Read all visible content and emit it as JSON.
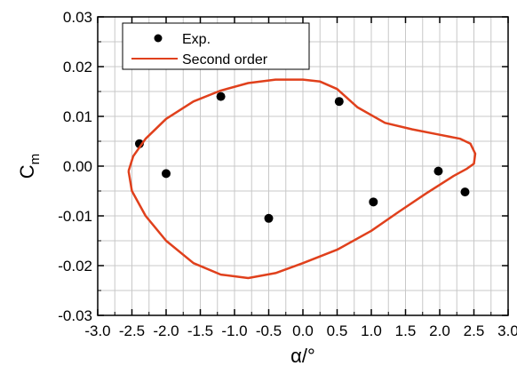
{
  "chart_data": {
    "type": "scatter",
    "xlabel": "α/°",
    "ylabel": "C",
    "ylabel_subscript": "m",
    "xlim": [
      -3.0,
      3.0
    ],
    "ylim": [
      -0.03,
      0.03
    ],
    "x_ticks": [
      -3.0,
      -2.5,
      -2.0,
      -1.5,
      -1.0,
      -0.5,
      0.0,
      0.5,
      1.0,
      1.5,
      2.0,
      2.5,
      3.0
    ],
    "x_tick_labels": [
      "-3.0",
      "-2.5",
      "-2.0",
      "-1.5",
      "-1.0",
      "-0.5",
      "0.0",
      "0.5",
      "1.0",
      "1.5",
      "2.0",
      "2.5",
      "3.0"
    ],
    "y_ticks": [
      -0.03,
      -0.02,
      -0.01,
      0.0,
      0.01,
      0.02,
      0.03
    ],
    "y_tick_labels": [
      "-0.03",
      "-0.02",
      "-0.01",
      "0.00",
      "0.01",
      "0.02",
      "0.03"
    ],
    "grid": true,
    "legend_position": "top-left",
    "series": [
      {
        "name": "Exp.",
        "style": "markers",
        "color": "#000000",
        "x": [
          -2.39,
          -2.0,
          -1.2,
          -0.5,
          0.53,
          1.03,
          1.98,
          2.37
        ],
        "y": [
          0.0045,
          -0.0015,
          0.014,
          -0.0105,
          0.013,
          -0.0072,
          -0.001,
          -0.0052
        ]
      },
      {
        "name": "Second order",
        "style": "line",
        "color": "#e0401c",
        "x": [
          -2.55,
          -2.48,
          -2.3,
          -2.0,
          -1.6,
          -1.2,
          -0.8,
          -0.4,
          0.0,
          0.25,
          0.5,
          0.8,
          1.2,
          1.6,
          2.0,
          2.3,
          2.45,
          2.52,
          2.5,
          2.4,
          2.2,
          1.8,
          1.4,
          1.0,
          0.5,
          0.0,
          -0.4,
          -0.8,
          -1.2,
          -1.6,
          -2.0,
          -2.3,
          -2.5,
          -2.55
        ],
        "y": [
          -0.001,
          0.002,
          0.0055,
          0.0095,
          0.013,
          0.0152,
          0.0167,
          0.0174,
          0.0174,
          0.017,
          0.0155,
          0.0118,
          0.0087,
          0.0074,
          0.0063,
          0.0055,
          0.0045,
          0.0025,
          0.0005,
          -0.0005,
          -0.002,
          -0.0055,
          -0.0092,
          -0.013,
          -0.0168,
          -0.0195,
          -0.0215,
          -0.0225,
          -0.0218,
          -0.0195,
          -0.015,
          -0.01,
          -0.005,
          -0.001
        ]
      }
    ]
  }
}
